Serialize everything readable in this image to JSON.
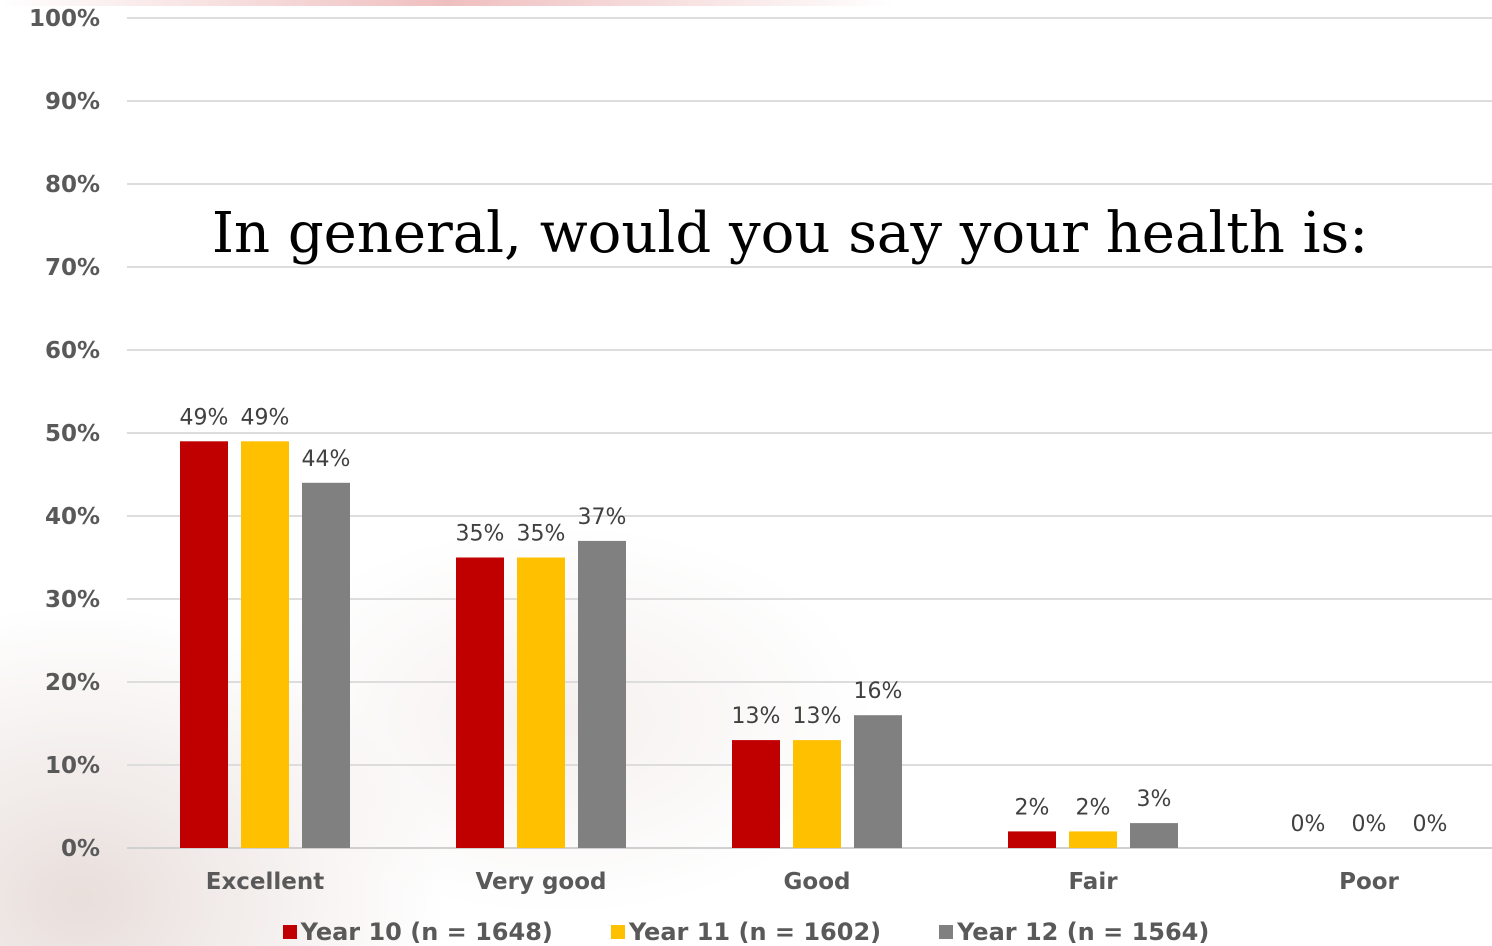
{
  "chart_data": {
    "type": "bar",
    "title": "In general, would you say your health is:",
    "categories": [
      "Excellent",
      "Very good",
      "Good",
      "Fair",
      "Poor"
    ],
    "series": [
      {
        "name": "Year 10 (n = 1648)",
        "color": "#C00000",
        "values": [
          49,
          35,
          13,
          2,
          0
        ],
        "labels": [
          "49%",
          "35%",
          "13%",
          "2%",
          "0%"
        ]
      },
      {
        "name": "Year 11 (n = 1602)",
        "color": "#FFC000",
        "values": [
          49,
          35,
          13,
          2,
          0
        ],
        "labels": [
          "49%",
          "35%",
          "13%",
          "2%",
          "0%"
        ]
      },
      {
        "name": "Year 12 (n = 1564)",
        "color": "#808080",
        "values": [
          44,
          37,
          16,
          3,
          0
        ],
        "labels": [
          "44%",
          "37%",
          "16%",
          "3%",
          "0%"
        ]
      }
    ],
    "ylim": [
      0,
      100
    ],
    "yticks": [
      0,
      10,
      20,
      30,
      40,
      50,
      60,
      70,
      80,
      90,
      100
    ],
    "ytick_labels": [
      "0%",
      "10%",
      "20%",
      "30%",
      "40%",
      "50%",
      "60%",
      "70%",
      "80%",
      "90%",
      "100%"
    ],
    "grid": true,
    "legend_position": "bottom"
  }
}
